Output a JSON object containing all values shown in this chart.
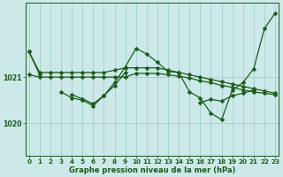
{
  "xlabel": "Graphe pression niveau de la mer (hPa)",
  "background_color": "#cce8e8",
  "grid_color": "#99cccc",
  "line_color": "#1a5c1a",
  "x_ticks": [
    0,
    1,
    2,
    3,
    4,
    5,
    6,
    7,
    8,
    9,
    10,
    11,
    12,
    13,
    14,
    15,
    16,
    17,
    18,
    19,
    20,
    21,
    22,
    23
  ],
  "y_ticks": [
    1020,
    1021
  ],
  "ylim": [
    1019.3,
    1022.6
  ],
  "xlim": [
    -0.3,
    23.3
  ],
  "line1": [
    1021.55,
    1021.1,
    1021.1,
    1021.1,
    1021.1,
    1021.1,
    1021.1,
    1021.1,
    1021.15,
    1021.2,
    1021.2,
    1021.2,
    1021.2,
    1021.15,
    1021.1,
    1021.05,
    1021.0,
    1020.95,
    1020.9,
    1020.85,
    1020.8,
    1020.75,
    1020.7,
    1020.65
  ],
  "line2": [
    1021.05,
    1021.0,
    1021.0,
    1021.0,
    1021.0,
    1021.0,
    1021.0,
    1021.0,
    1021.0,
    1021.0,
    1021.08,
    1021.08,
    1021.08,
    1021.05,
    1021.02,
    1020.98,
    1020.92,
    1020.88,
    1020.82,
    1020.78,
    1020.72,
    1020.68,
    1020.65,
    1020.62
  ],
  "line3": [
    1021.55,
    1021.05,
    null,
    null,
    1020.62,
    1020.53,
    1020.42,
    1020.6,
    1020.88,
    1021.22,
    1021.62,
    1021.5,
    1021.32,
    1021.12,
    1021.1,
    1020.68,
    1020.55,
    1020.22,
    1020.08,
    1020.72,
    1020.88,
    1021.18,
    1022.05,
    1022.38
  ],
  "line4": [
    null,
    null,
    null,
    1020.68,
    1020.55,
    1020.5,
    1020.38,
    1020.6,
    1020.82,
    1021.1,
    null,
    null,
    null,
    null,
    null,
    null,
    1020.45,
    1020.52,
    1020.48,
    1020.6,
    1020.65,
    1020.72,
    null,
    null
  ],
  "marker": "D",
  "markersize": 2.5,
  "linewidth": 0.9,
  "xlabel_fontsize": 6.0,
  "tick_fontsize": 5.2
}
